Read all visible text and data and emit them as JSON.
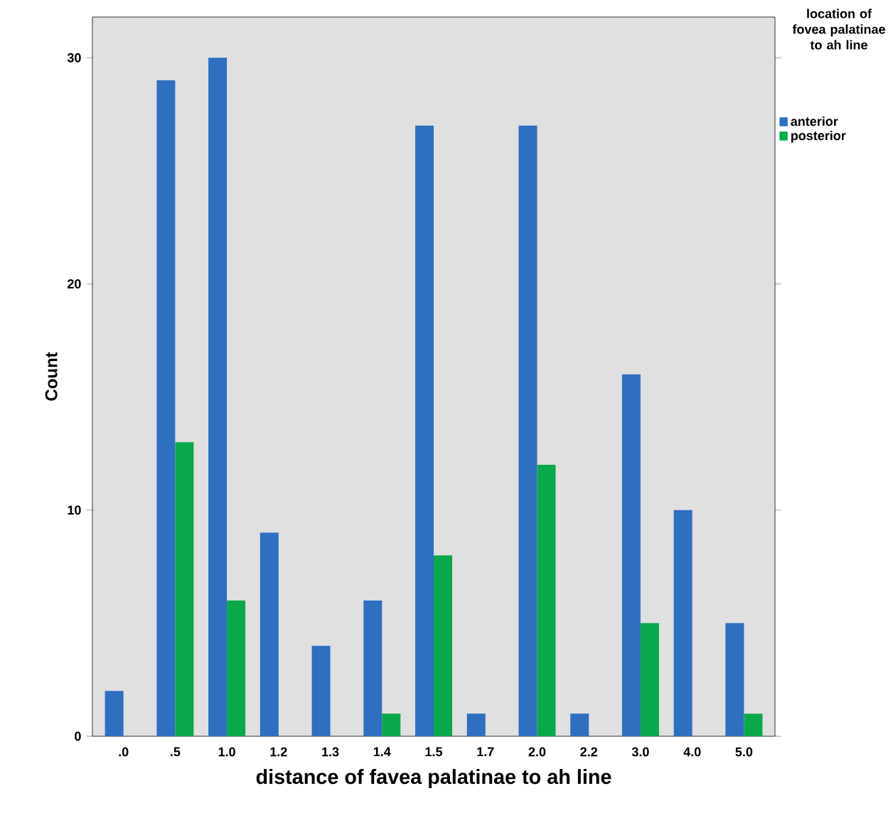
{
  "chart_data": {
    "type": "bar",
    "xlabel": "distance of favea palatinae to ah line",
    "ylabel": "Count",
    "legend_title": "location of fovea palatinae to ah line",
    "categories": [
      ".0",
      ".5",
      "1.0",
      "1.2",
      "1.3",
      "1.4",
      "1.5",
      "1.7",
      "2.0",
      "2.2",
      "3.0",
      "4.0",
      "5.0"
    ],
    "series": [
      {
        "name": "anterior",
        "color": "#2e6fc0",
        "values": [
          2,
          29,
          30,
          9,
          4,
          6,
          27,
          1,
          27,
          1,
          16,
          10,
          5
        ]
      },
      {
        "name": "posterior",
        "color": "#0aa84a",
        "values": [
          null,
          13,
          6,
          null,
          null,
          1,
          8,
          null,
          12,
          null,
          5,
          null,
          1
        ]
      }
    ],
    "ylim": [
      0,
      31.8
    ],
    "yticks": [
      0,
      10,
      20,
      30
    ],
    "grid": false,
    "legend": "right"
  }
}
